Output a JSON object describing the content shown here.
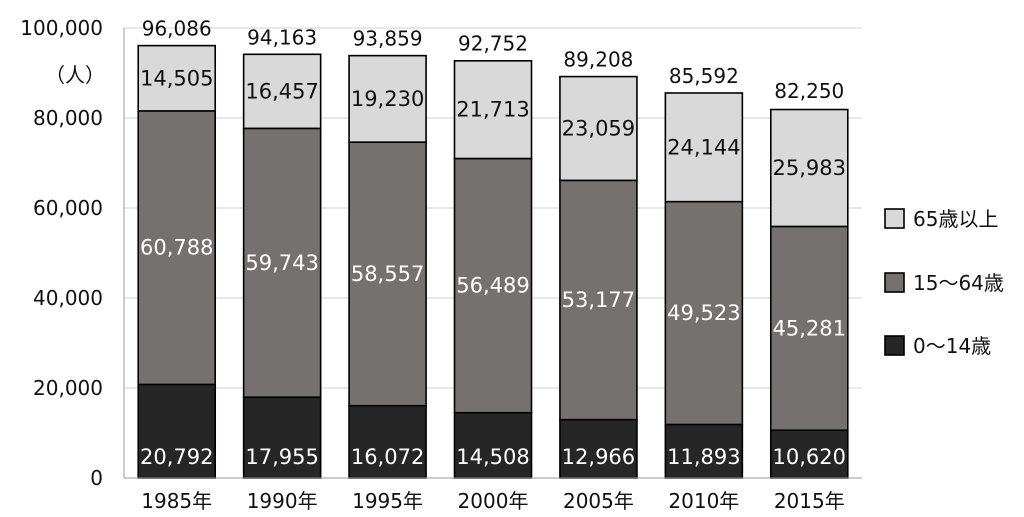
{
  "chart_data": {
    "type": "bar",
    "stacked": true,
    "unit_label": "（人）",
    "categories": [
      "1985年",
      "1990年",
      "1995年",
      "2000年",
      "2005年",
      "2010年",
      "2015年"
    ],
    "series": [
      {
        "name": "0～14歳",
        "color": "#262626",
        "label_color": "#ffffff",
        "values": [
          20792,
          17955,
          16072,
          14508,
          12966,
          11893,
          10620
        ]
      },
      {
        "name": "15～64歳",
        "color": "#767171",
        "label_color": "#ffffff",
        "values": [
          60788,
          59743,
          58557,
          56489,
          53177,
          49523,
          45281
        ]
      },
      {
        "name": "65歳以上",
        "color": "#d9d9d9",
        "label_color": "#111111",
        "values": [
          14505,
          16457,
          19230,
          21713,
          23059,
          24144,
          25983
        ]
      }
    ],
    "series_labels": [
      [
        "20,792",
        "17,955",
        "16,072",
        "14,508",
        "12,966",
        "11,893",
        "10,620"
      ],
      [
        "60,788",
        "59,743",
        "58,557",
        "56,489",
        "53,177",
        "49,523",
        "45,281"
      ],
      [
        "14,505",
        "16,457",
        "19,230",
        "21,713",
        "23,059",
        "24,144",
        "25,983"
      ]
    ],
    "totals": [
      96086,
      94163,
      93859,
      92752,
      89208,
      85592,
      82250
    ],
    "total_labels": [
      "96,086",
      "94,163",
      "93,859",
      "92,752",
      "89,208",
      "85,592",
      "82,250"
    ],
    "ylim": [
      0,
      100000
    ],
    "y_ticks": [
      0,
      20000,
      40000,
      60000,
      80000,
      100000
    ],
    "y_tick_labels": [
      "0",
      "20,000",
      "40,000",
      "60,000",
      "80,000",
      "100,000"
    ],
    "grid": true,
    "legend_position": "right",
    "legend_order": [
      "65歳以上",
      "15～64歳",
      "0～14歳"
    ]
  }
}
